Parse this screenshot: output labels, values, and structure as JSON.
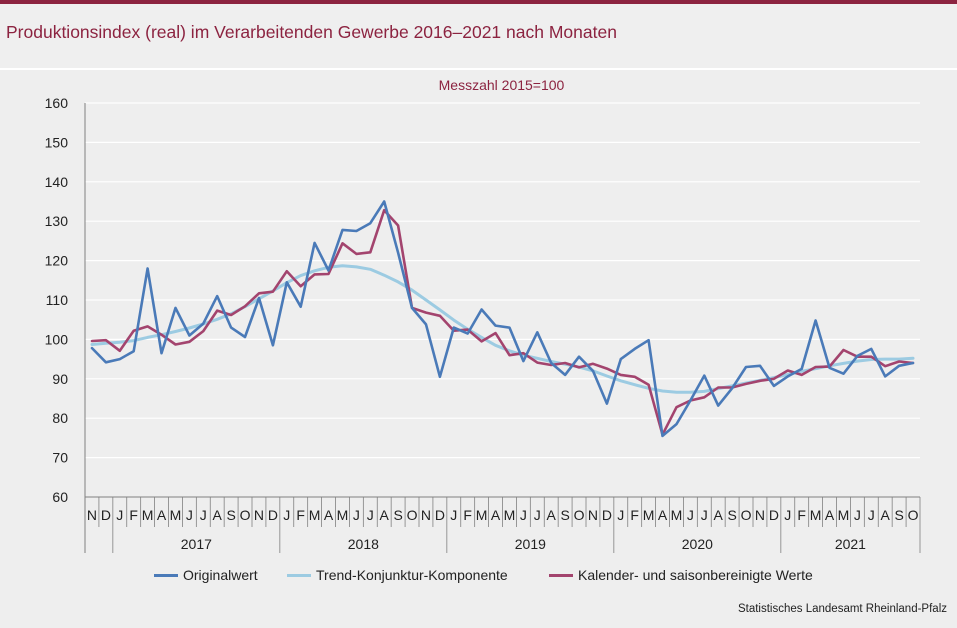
{
  "title": "Produktionsindex (real) im Verarbeitenden Gewerbe 2016–2021 nach Monaten",
  "source": "Statistisches Landesamt Rheinland-Pfalz",
  "colors": {
    "brand": "#8c2340",
    "original": "#4a7ab8",
    "trend": "#9ccbe2",
    "adjusted": "#a3446e",
    "grid": "#ffffff",
    "axis": "#808080"
  },
  "chart_data": {
    "type": "line",
    "subtitle": "Messzahl 2015=100",
    "ylim": [
      60,
      160
    ],
    "yticks": [
      60,
      70,
      80,
      90,
      100,
      110,
      120,
      130,
      140,
      150,
      160
    ],
    "grid": true,
    "legend_position": "bottom",
    "month_labels": [
      "N",
      "D",
      "J",
      "F",
      "M",
      "A",
      "M",
      "J",
      "J",
      "A",
      "S",
      "O",
      "N",
      "D",
      "J",
      "F",
      "M",
      "A",
      "M",
      "J",
      "J",
      "A",
      "S",
      "O",
      "N",
      "D",
      "J",
      "F",
      "M",
      "A",
      "M",
      "J",
      "J",
      "A",
      "S",
      "O",
      "N",
      "D",
      "J",
      "F",
      "M",
      "A",
      "M",
      "J",
      "J",
      "A",
      "S",
      "O",
      "N",
      "D",
      "J",
      "F",
      "M",
      "A",
      "M",
      "J",
      "J",
      "A",
      "S",
      "O"
    ],
    "years": [
      {
        "label": "2017",
        "start": 2,
        "end": 14
      },
      {
        "label": "2018",
        "start": 14,
        "end": 26
      },
      {
        "label": "2019",
        "start": 26,
        "end": 38
      },
      {
        "label": "2020",
        "start": 38,
        "end": 50
      },
      {
        "label": "2021",
        "start": 50,
        "end": 60
      }
    ],
    "series": [
      {
        "name": "Originalwert",
        "color": "#4a7ab8",
        "values": [
          97.8,
          94.2,
          95,
          97,
          118,
          96.5,
          108,
          101,
          104,
          111,
          103,
          100.6,
          110.5,
          98.5,
          114.5,
          108.3,
          124.5,
          117.5,
          127.8,
          127.5,
          129.5,
          135,
          122,
          108,
          103.8,
          90.5,
          103,
          101.5,
          107.6,
          103.5,
          103,
          94.5,
          101.8,
          94,
          91,
          95.6,
          92,
          83.7,
          95,
          97.6,
          99.8,
          75.5,
          78.5,
          84.5,
          90.8,
          83.2,
          87.6,
          93,
          93.3,
          88.2,
          90.6,
          92.5,
          104.8,
          92.8,
          91.3,
          95.8,
          97.6,
          90.6,
          93.3,
          94
        ]
      },
      {
        "name": "Trend-Konjunktur-Komponente",
        "color": "#9ccbe2",
        "values": [
          98.7,
          99,
          99.3,
          99.7,
          100.5,
          101.2,
          102,
          102.9,
          103.9,
          105.1,
          106.5,
          108.3,
          110.3,
          112.3,
          114.4,
          116.2,
          117.4,
          118.3,
          118.7,
          118.4,
          117.8,
          116.3,
          114.6,
          112.5,
          110,
          107.5,
          104.9,
          102.6,
          100.5,
          98.5,
          97.1,
          96,
          95.2,
          94.4,
          93.7,
          93,
          92,
          90.7,
          89.5,
          88.5,
          87.6,
          86.9,
          86.6,
          86.6,
          86.8,
          87.5,
          88.2,
          88.9,
          89.6,
          90.3,
          91.1,
          91.9,
          92.6,
          93.3,
          93.9,
          94.5,
          94.9,
          95,
          95,
          95.2
        ]
      },
      {
        "name": "Kalender- und saisonbereinigte Werte",
        "color": "#a3446e",
        "values": [
          99.6,
          99.8,
          97.1,
          102.2,
          103.3,
          101.2,
          98.7,
          99.4,
          102.1,
          107.3,
          106.2,
          108.4,
          111.7,
          112.1,
          117.3,
          113.5,
          116.5,
          116.6,
          124.4,
          121.7,
          122.1,
          132.8,
          128.9,
          108,
          106.8,
          106,
          102.2,
          102.5,
          99.5,
          101.6,
          96,
          96.5,
          94.1,
          93.5,
          94,
          92.9,
          93.8,
          92.6,
          91,
          90.5,
          88.5,
          75.8,
          82.8,
          84.5,
          85.3,
          87.8,
          87.8,
          88.7,
          89.5,
          90,
          92.1,
          91,
          93,
          93.1,
          97.3,
          95.6,
          95.6,
          93.2,
          94.4,
          94
        ]
      }
    ]
  }
}
